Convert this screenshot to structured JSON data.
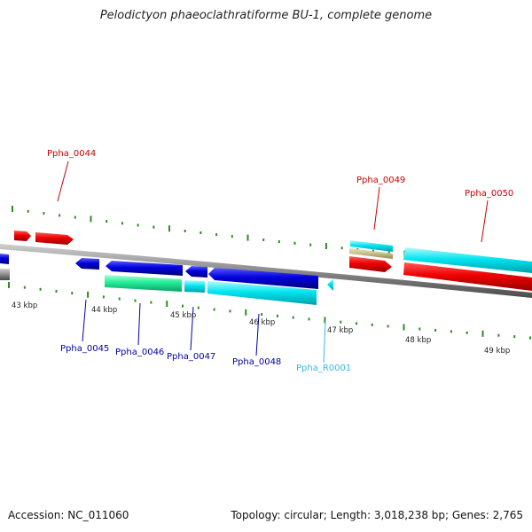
{
  "title": "Pelodictyon phaeoclathratiforme BU-1, complete genome",
  "footer": {
    "accession": "Accession: NC_011060",
    "summary": "Topology: circular; Length: 3,018,238 bp; Genes: 2,765"
  },
  "colors": {
    "red_gene": "#ee0000",
    "blue_gene": "#0000dd",
    "cyan_gene": "#00e5f0",
    "green_gene": "#22ee99",
    "khaki_gene": "#c8c08a",
    "tick": "#2e8b22",
    "backbone": "#888888",
    "label_red": "#cc0000",
    "label_blue": "#0000aa",
    "label_cyan": "#33bbdd"
  },
  "scale_ticks": [
    "43 kbp",
    "44 kbp",
    "45 kbp",
    "46 kbp",
    "47 kbp",
    "48 kbp",
    "49 kbp"
  ],
  "gene_labels": [
    {
      "id": "Ppha_0044",
      "color": "red"
    },
    {
      "id": "Ppha_0045",
      "color": "blue"
    },
    {
      "id": "Ppha_0046",
      "color": "blue"
    },
    {
      "id": "Ppha_0047",
      "color": "blue"
    },
    {
      "id": "Ppha_0048",
      "color": "blue"
    },
    {
      "id": "Ppha_R0001",
      "color": "cyan"
    },
    {
      "id": "Ppha_0049",
      "color": "red"
    },
    {
      "id": "Ppha_0050",
      "color": "red"
    }
  ]
}
